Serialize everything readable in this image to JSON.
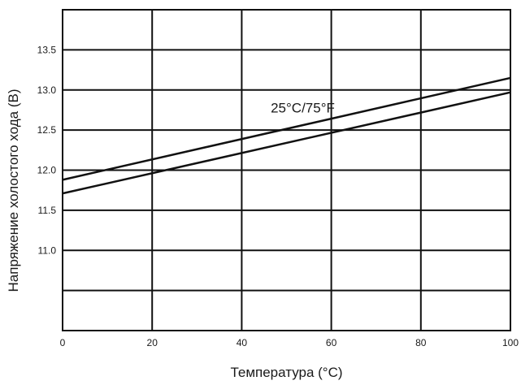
{
  "chart_data": {
    "type": "line",
    "xlabel": "Температура (°C)",
    "ylabel": "Напряжение холостого хода (В)",
    "xlim": [
      0,
      100
    ],
    "ylim": [
      10.0,
      14.0
    ],
    "x_ticks": [
      "0",
      "20",
      "40",
      "60",
      "80",
      "100"
    ],
    "y_ticks": [
      {
        "value": 13.5,
        "label": "13.5"
      },
      {
        "value": 13.0,
        "label": "13.0"
      },
      {
        "value": 12.5,
        "label": "12.5"
      },
      {
        "value": 12.0,
        "label": "12.0"
      },
      {
        "value": 11.5,
        "label": "11.5"
      },
      {
        "value": 11.0,
        "label": "11.0"
      },
      {
        "value": 10.5,
        "label": ""
      }
    ],
    "grid": true,
    "series": [
      {
        "x": [
          0,
          100
        ],
        "y": [
          11.88,
          13.15
        ]
      },
      {
        "x": [
          0,
          100
        ],
        "y": [
          11.71,
          12.97
        ]
      }
    ],
    "annotations": [
      {
        "text": "25°C/75°F",
        "x": 50,
        "y": 12.78
      }
    ]
  }
}
